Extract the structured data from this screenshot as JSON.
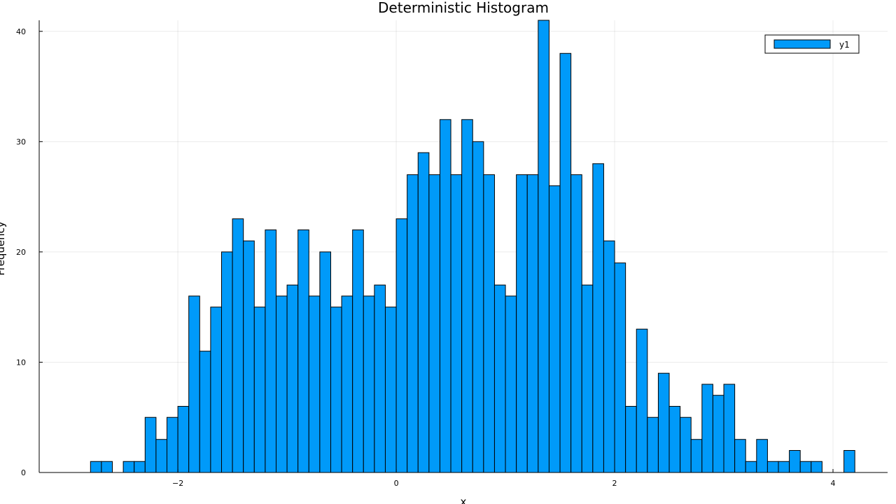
{
  "chart_data": {
    "type": "bar",
    "title": "Deterministic Histogram",
    "xlabel": "x",
    "ylabel": "Frequency",
    "xlim": [
      -3.27,
      4.5
    ],
    "ylim": [
      0,
      41
    ],
    "x_ticks": [
      -2,
      0,
      2,
      4
    ],
    "y_ticks": [
      0,
      10,
      20,
      30,
      40
    ],
    "x_tick_labels": [
      "−2",
      "0",
      "2",
      "4"
    ],
    "y_tick_labels": [
      "0",
      "10",
      "20",
      "30",
      "40"
    ],
    "grid": true,
    "legend": {
      "placement": "top-right",
      "entries": [
        "y1"
      ]
    },
    "bar_color": "#009AF9",
    "bin_width": 0.1,
    "bin_start": -2.8,
    "series": [
      {
        "name": "y1",
        "values": [
          1,
          1,
          0,
          1,
          1,
          5,
          3,
          5,
          6,
          16,
          11,
          15,
          20,
          23,
          21,
          15,
          22,
          16,
          17,
          22,
          16,
          20,
          15,
          16,
          22,
          16,
          17,
          15,
          23,
          27,
          29,
          27,
          32,
          27,
          32,
          30,
          27,
          17,
          16,
          27,
          27,
          41,
          26,
          38,
          27,
          17,
          28,
          21,
          19,
          6,
          13,
          5,
          9,
          6,
          5,
          3,
          8,
          7,
          8,
          3,
          1,
          3,
          1,
          1,
          2,
          1,
          1,
          0,
          0,
          2
        ]
      }
    ]
  }
}
